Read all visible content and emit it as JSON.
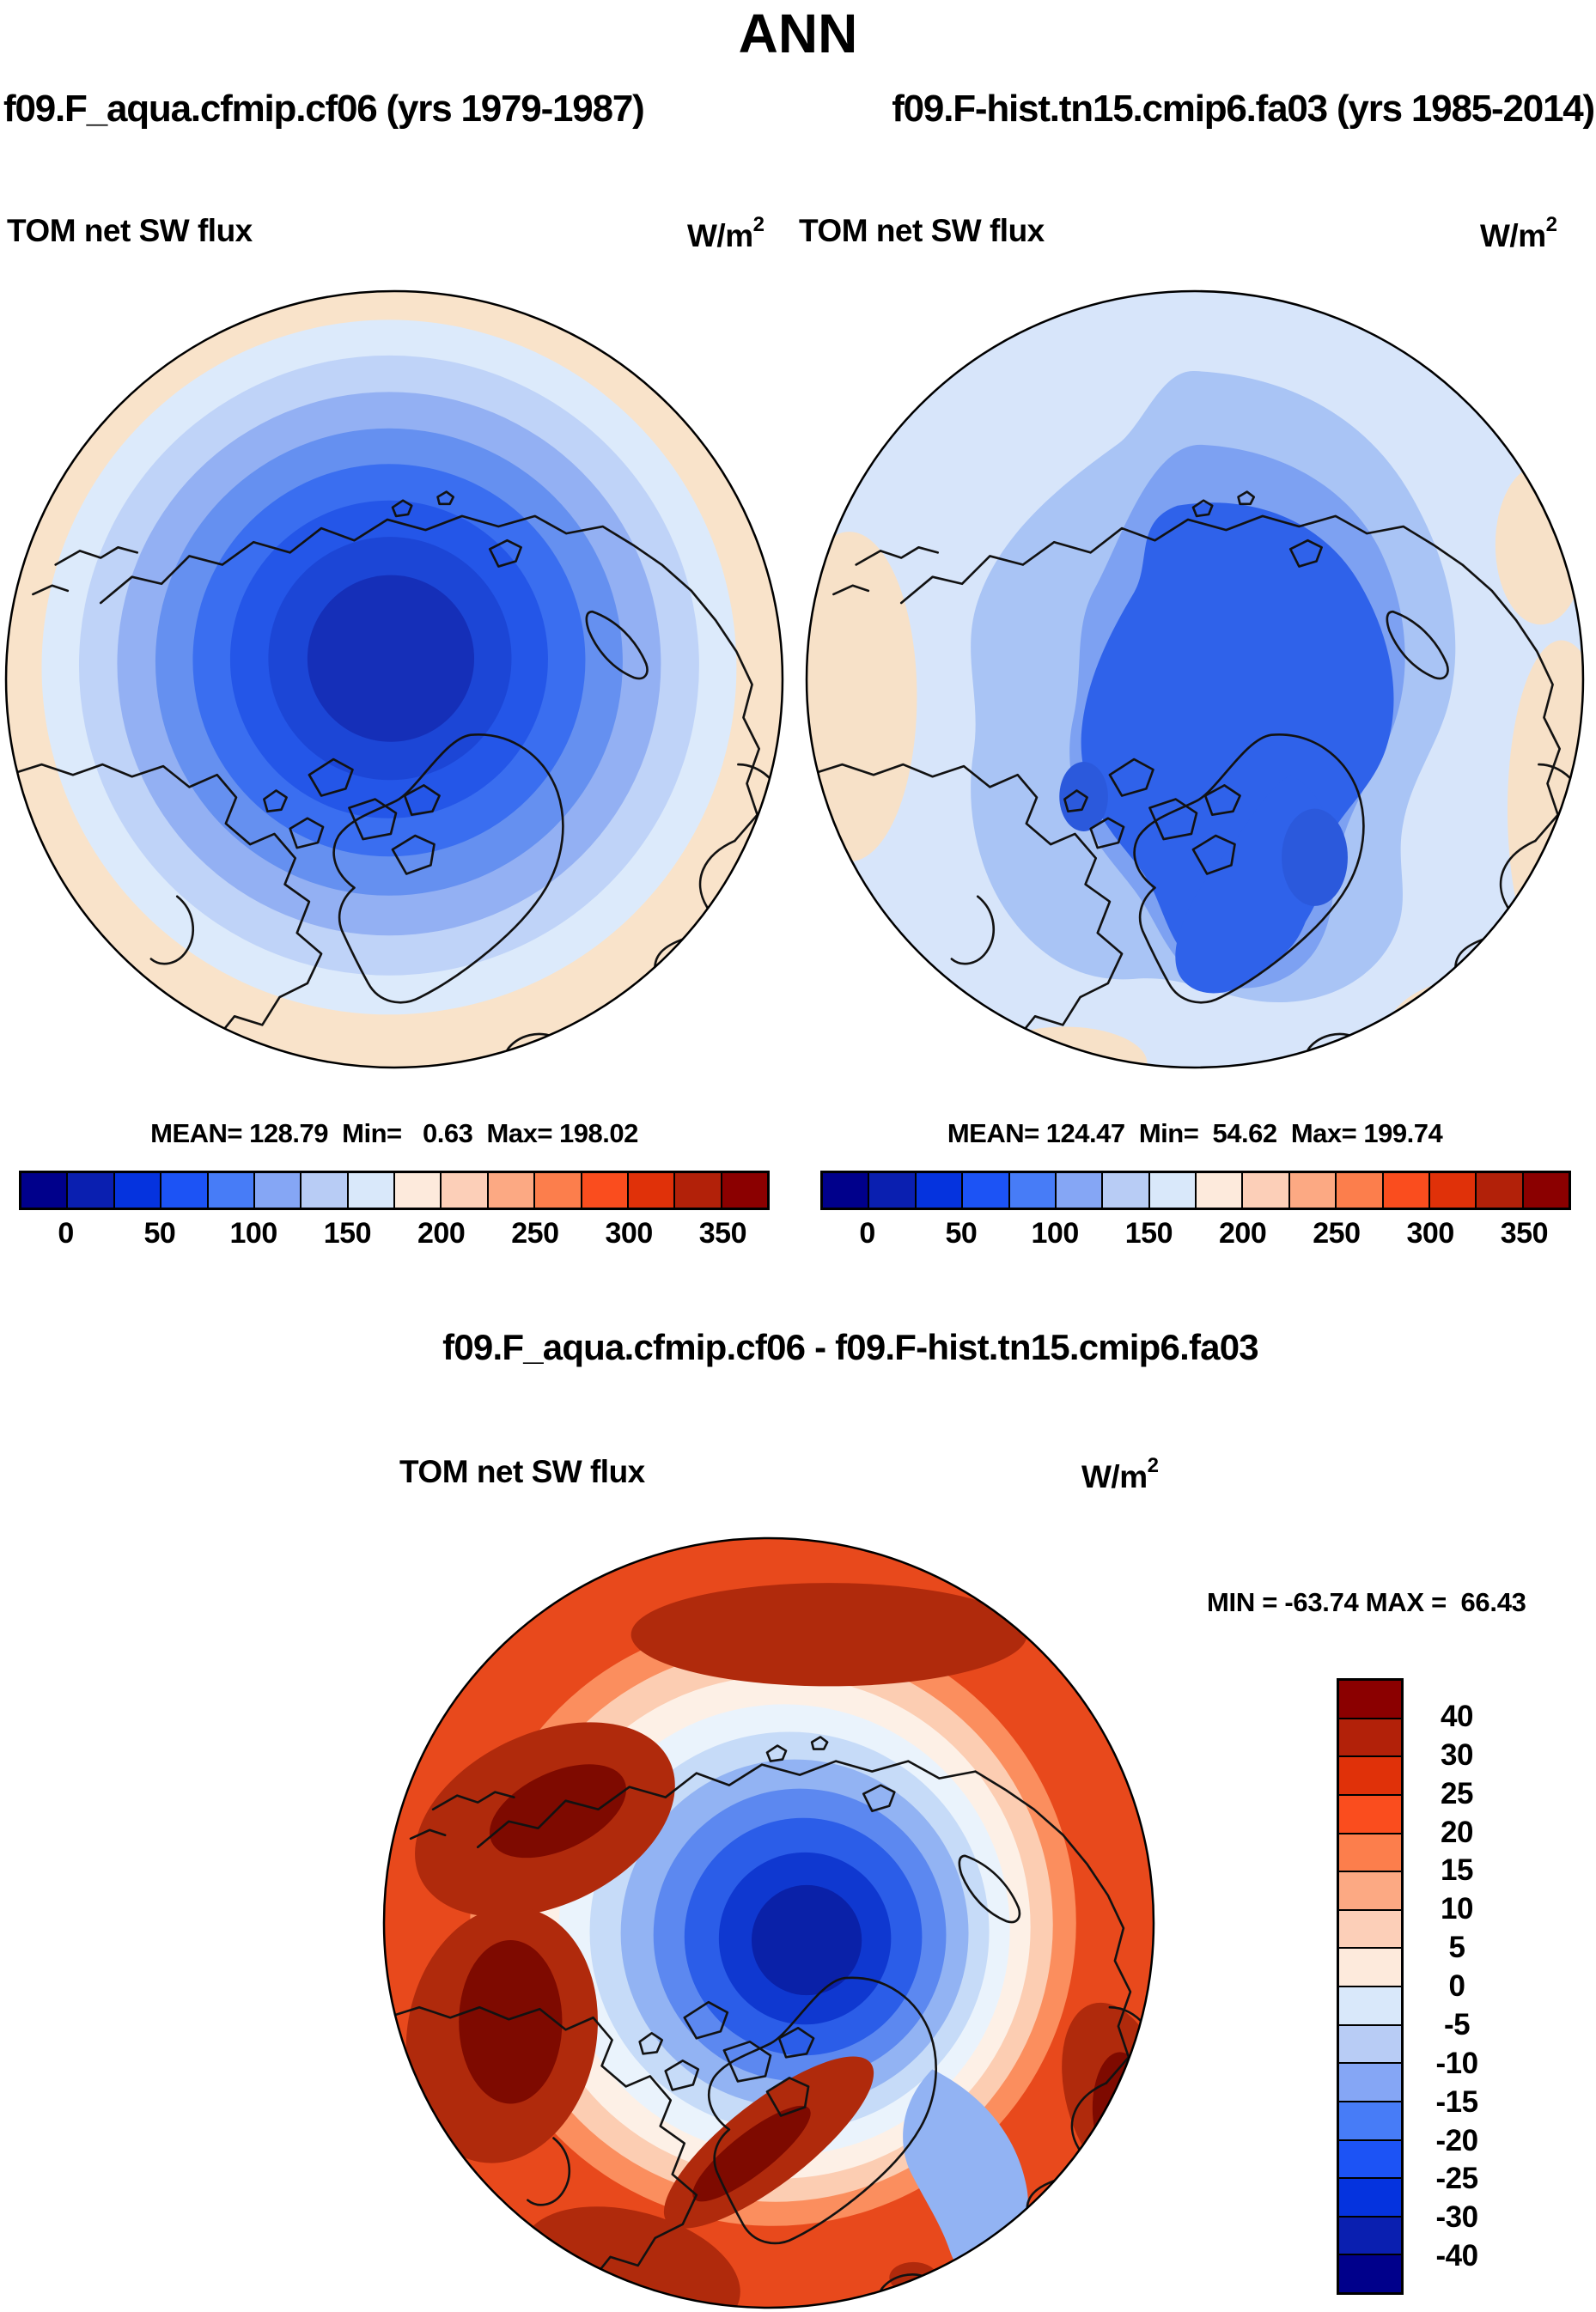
{
  "page": {
    "title": "ANN"
  },
  "header": {
    "left_run": "f09.F_aqua.cfmip.cf06 (yrs 1979-1987)",
    "right_run": "f09.F-hist.tn15.cmip6.fa03 (yrs 1985-2014)"
  },
  "panels": {
    "left": {
      "var_label": "TOM net SW flux",
      "units": "W/m",
      "units_sup": "2",
      "stats": "MEAN= 128.79  Min=   0.63  Max= 198.02"
    },
    "right": {
      "var_label": "TOM net SW flux",
      "units": "W/m",
      "units_sup": "2",
      "stats": "MEAN= 124.47  Min=  54.62  Max= 199.74"
    },
    "diff": {
      "section_title": "f09.F_aqua.cfmip.cf06 - f09.F-hist.tn15.cmip6.fa03",
      "var_label": "TOM net SW flux",
      "units": "W/m",
      "units_sup": "2",
      "minmax": "MIN = -63.74 MAX =  66.43"
    }
  },
  "colorbar_main": {
    "colors": [
      "#00008B",
      "#0A1FB0",
      "#0533DE",
      "#1C53F5",
      "#477CF7",
      "#85A6F5",
      "#B8CCF5",
      "#D9E8FA",
      "#FDEADC",
      "#FCCFB8",
      "#FCA983",
      "#FC7E4C",
      "#FA4D1E",
      "#E03109",
      "#B22109",
      "#8B0000"
    ],
    "labels": [
      "0",
      "50",
      "100",
      "150",
      "200",
      "250",
      "300",
      "350"
    ],
    "positions": [
      1,
      3,
      5,
      7,
      9,
      11,
      13,
      15
    ]
  },
  "colorbar_diff": {
    "colors": [
      "#8B0000",
      "#B22109",
      "#E03109",
      "#FA4D1E",
      "#FC7E4C",
      "#FCA983",
      "#FCCFB8",
      "#FDEADC",
      "#D9E8FA",
      "#B8CCF5",
      "#85A6F5",
      "#477CF7",
      "#1C53F5",
      "#0533DE",
      "#0A1FB0",
      "#00008B"
    ],
    "labels": [
      "40",
      "30",
      "25",
      "20",
      "15",
      "10",
      "5",
      "0",
      "-5",
      "-10",
      "-15",
      "-20",
      "-25",
      "-30",
      "-40"
    ],
    "positions": [
      1,
      2,
      3,
      4,
      5,
      6,
      7,
      8,
      9,
      10,
      11,
      12,
      13,
      14,
      15
    ]
  },
  "maps": {
    "coast_color": "#121212",
    "aqua": {
      "ring_colors": [
        "#F9E3CA",
        "#DCEAFB",
        "#BFD3F8",
        "#93B0F3",
        "#6590F0",
        "#3A6EF0",
        "#2456E8",
        "#1C46D6",
        "#152FB8"
      ]
    },
    "hist": {
      "base": "#D7E5FA",
      "rim": "#F7E1C8",
      "light": "#A9C4F5",
      "medium": "#7DA1F2",
      "core": "#2F62EA",
      "dark": "#2B59DC"
    },
    "diff": {
      "outer": "#E8491C",
      "dark_red": "#B02A0C",
      "darker_red": "#7E0A00",
      "salmon": "#FB8E5E",
      "peach": "#FCCDB2",
      "pale": "#FDF0E6",
      "white_blue": "#EAF3FC",
      "blue1": "#C6DBF8",
      "blue2": "#92B3F3",
      "blue3": "#5C88F0",
      "blue4": "#2B5DE8",
      "blue5": "#0F38D0",
      "core": "#0A21A8"
    }
  },
  "chart_data": [
    {
      "type": "heatmap",
      "subtype": "north-polar-stereographic-contour-map",
      "title": "TOM net SW flux",
      "units": "W/m2",
      "run": "f09.F_aqua.cfmip.cf06",
      "years": "1979-1987",
      "stats": {
        "mean": 128.79,
        "min": 0.63,
        "max": 198.02
      },
      "contour_levels": [
        0,
        25,
        50,
        75,
        100,
        125,
        150,
        175,
        200,
        225,
        250,
        275,
        300,
        325,
        350
      ],
      "legend_position": "bottom",
      "pattern": "smooth concentric rings, minimum flux at pole (dark blue), maximum near map rim (peach)"
    },
    {
      "type": "heatmap",
      "subtype": "north-polar-stereographic-contour-map",
      "title": "TOM net SW flux",
      "units": "W/m2",
      "run": "f09.F-hist.tn15.cmip6.fa03",
      "years": "1985-2014",
      "stats": {
        "mean": 124.47,
        "min": 54.62,
        "max": 199.74
      },
      "contour_levels": [
        0,
        25,
        50,
        75,
        100,
        125,
        150,
        175,
        200,
        225,
        250,
        275,
        300,
        325,
        350
      ],
      "legend_position": "bottom",
      "pattern": "irregular blue field, lowest flux over central Arctic and Greenland, peach patches at rim"
    },
    {
      "type": "heatmap",
      "subtype": "north-polar-stereographic-contour-map",
      "title": "TOM net SW flux difference",
      "units": "W/m2",
      "expression": "f09.F_aqua.cfmip.cf06 - f09.F-hist.tn15.cmip6.fa03",
      "stats": {
        "min": -63.74,
        "max": 66.43
      },
      "contour_levels": [
        -40,
        -30,
        -25,
        -20,
        -15,
        -10,
        -5,
        0,
        5,
        10,
        15,
        20,
        25,
        30,
        40
      ],
      "legend_position": "right",
      "pattern": "strong positive (red) ring at lower latitudes and over land, strong negative (blue) core over Arctic Ocean"
    }
  ]
}
